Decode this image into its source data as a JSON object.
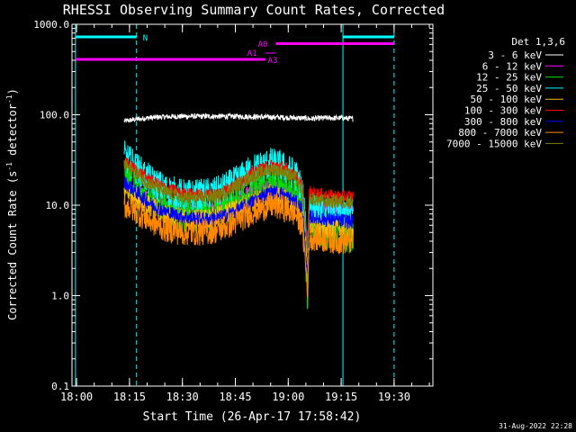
{
  "chart_data": {
    "type": "line",
    "title": "RHESSI Observing Summary Count Rates, Corrected",
    "xlabel": "Start Time (26-Apr-17 17:58:42)",
    "ylabel_main": "Corrected Count Rate (s",
    "ylabel_sup1": "-1",
    "ylabel_mid": " detector",
    "ylabel_sup2": "-1",
    "ylabel_end": ")",
    "y_scale": "log",
    "ylim": [
      0.1,
      1000
    ],
    "xlim_minutes": [
      -1.3,
      101
    ],
    "x_ticks": [
      {
        "label": "18:00",
        "minutes": 0
      },
      {
        "label": "18:15",
        "minutes": 15
      },
      {
        "label": "18:30",
        "minutes": 30
      },
      {
        "label": "18:45",
        "minutes": 45
      },
      {
        "label": "19:00",
        "minutes": 60
      },
      {
        "label": "19:15",
        "minutes": 75
      },
      {
        "label": "19:30",
        "minutes": 90
      }
    ],
    "y_ticks": [
      {
        "label": "1000.0",
        "value": 1000
      },
      {
        "label": "100.0",
        "value": 100
      },
      {
        "label": "10.0",
        "value": 10
      },
      {
        "label": "1.0",
        "value": 1
      },
      {
        "label": "0.1",
        "value": 0.1
      }
    ],
    "legend_header": "Det 1,3,6",
    "legend_placement": "right",
    "series": [
      {
        "name": "3 - 6 keV",
        "color": "#ffffff",
        "points": [
          [
            13.5,
            85
          ],
          [
            16,
            88
          ],
          [
            20,
            92
          ],
          [
            25,
            95
          ],
          [
            30,
            96
          ],
          [
            35,
            96
          ],
          [
            40,
            96
          ],
          [
            45,
            96
          ],
          [
            50,
            95
          ],
          [
            55,
            94
          ],
          [
            60,
            93
          ],
          [
            63,
            92
          ],
          [
            65.4,
            91
          ],
          [
            65.6,
            91
          ],
          [
            66,
            90
          ],
          [
            70,
            92
          ],
          [
            75,
            92
          ],
          [
            78.4,
            90
          ]
        ]
      },
      {
        "name": "6 - 12 keV",
        "color": "#ff00ff",
        "points": [
          [
            13.5,
            18
          ],
          [
            16,
            16
          ],
          [
            20,
            13
          ],
          [
            25,
            10.5
          ],
          [
            30,
            9.5
          ],
          [
            35,
            9.3
          ],
          [
            40,
            10
          ],
          [
            45,
            12
          ],
          [
            50,
            15
          ],
          [
            55,
            17
          ],
          [
            58,
            16
          ],
          [
            62,
            13
          ],
          [
            64,
            11
          ],
          [
            65.5,
            4
          ],
          [
            66,
            10
          ],
          [
            70,
            9.5
          ],
          [
            75,
            9
          ],
          [
            78.4,
            9
          ]
        ]
      },
      {
        "name": "12 - 25 keV",
        "color": "#00dd00",
        "points": [
          [
            13.5,
            22
          ],
          [
            16,
            17
          ],
          [
            20,
            12
          ],
          [
            25,
            9
          ],
          [
            30,
            8
          ],
          [
            35,
            8
          ],
          [
            40,
            8.5
          ],
          [
            45,
            11
          ],
          [
            50,
            15
          ],
          [
            55,
            19
          ],
          [
            58,
            18
          ],
          [
            62,
            14
          ],
          [
            64,
            10
          ],
          [
            65.5,
            1
          ],
          [
            66,
            6
          ],
          [
            70,
            5
          ],
          [
            75,
            5
          ],
          [
            78.4,
            4.5
          ]
        ]
      },
      {
        "name": "25 - 50 keV",
        "color": "#00ffff",
        "points": [
          [
            13.5,
            35
          ],
          [
            16,
            28
          ],
          [
            20,
            20
          ],
          [
            25,
            15
          ],
          [
            30,
            13
          ],
          [
            35,
            13
          ],
          [
            40,
            14
          ],
          [
            45,
            18
          ],
          [
            50,
            25
          ],
          [
            55,
            29
          ],
          [
            58,
            27
          ],
          [
            62,
            22
          ],
          [
            64,
            15
          ],
          [
            65.5,
            3
          ],
          [
            66,
            10
          ],
          [
            70,
            8
          ],
          [
            75,
            8
          ],
          [
            78.4,
            8
          ]
        ]
      },
      {
        "name": "50 - 100 keV",
        "color": "#ffbb00",
        "points": [
          [
            13.5,
            15
          ],
          [
            16,
            13
          ],
          [
            20,
            10
          ],
          [
            25,
            8
          ],
          [
            30,
            7
          ],
          [
            35,
            7
          ],
          [
            40,
            7.5
          ],
          [
            45,
            9
          ],
          [
            50,
            11
          ],
          [
            55,
            13
          ],
          [
            58,
            12
          ],
          [
            62,
            10
          ],
          [
            64,
            8
          ],
          [
            65.5,
            2
          ],
          [
            66,
            6
          ],
          [
            70,
            5.5
          ],
          [
            75,
            5.5
          ],
          [
            78.4,
            5
          ]
        ]
      },
      {
        "name": "100 - 300 keV",
        "color": "#ff0000",
        "points": [
          [
            13.5,
            30
          ],
          [
            16,
            26
          ],
          [
            20,
            20
          ],
          [
            25,
            15.5
          ],
          [
            30,
            13.5
          ],
          [
            35,
            13
          ],
          [
            40,
            13.5
          ],
          [
            45,
            17
          ],
          [
            50,
            23
          ],
          [
            55,
            27.5
          ],
          [
            58,
            27
          ],
          [
            62,
            22
          ],
          [
            64,
            16
          ],
          [
            65.5,
            3.5
          ],
          [
            66,
            14
          ],
          [
            70,
            13
          ],
          [
            75,
            12.5
          ],
          [
            78.4,
            12.5
          ]
        ]
      },
      {
        "name": "300 - 800 keV",
        "color": "#0000ff",
        "points": [
          [
            13.5,
            18
          ],
          [
            16,
            15
          ],
          [
            20,
            11
          ],
          [
            25,
            8.5
          ],
          [
            30,
            7.5
          ],
          [
            35,
            7
          ],
          [
            40,
            7.2
          ],
          [
            45,
            8.5
          ],
          [
            50,
            11
          ],
          [
            55,
            14
          ],
          [
            58,
            13.5
          ],
          [
            62,
            11
          ],
          [
            64,
            9
          ],
          [
            65.5,
            1.5
          ],
          [
            66,
            7.5
          ],
          [
            70,
            7
          ],
          [
            75,
            6.8
          ],
          [
            78.4,
            6.5
          ]
        ]
      },
      {
        "name": "800 - 7000 keV",
        "color": "#ff8800",
        "points": [
          [
            13.5,
            10
          ],
          [
            16,
            9
          ],
          [
            20,
            7
          ],
          [
            25,
            5.5
          ],
          [
            30,
            5
          ],
          [
            35,
            5
          ],
          [
            40,
            5.3
          ],
          [
            45,
            6.5
          ],
          [
            50,
            8.5
          ],
          [
            55,
            10
          ],
          [
            58,
            9.5
          ],
          [
            62,
            8
          ],
          [
            64,
            6
          ],
          [
            65.5,
            1.2
          ],
          [
            66,
            4.5
          ],
          [
            70,
            4.2
          ],
          [
            75,
            4
          ],
          [
            78.4,
            4
          ]
        ]
      },
      {
        "name": "7000 - 15000 keV",
        "color": "#808000",
        "points": [
          [
            13.5,
            28
          ],
          [
            16,
            24
          ],
          [
            20,
            18
          ],
          [
            25,
            14
          ],
          [
            30,
            12
          ],
          [
            35,
            12
          ],
          [
            40,
            12.5
          ],
          [
            45,
            16
          ],
          [
            50,
            21
          ],
          [
            55,
            25
          ],
          [
            58,
            24
          ],
          [
            62,
            20
          ],
          [
            64,
            14
          ],
          [
            65.5,
            3
          ],
          [
            66,
            12
          ],
          [
            70,
            11
          ],
          [
            75,
            11
          ],
          [
            78.4,
            11
          ]
        ]
      }
    ],
    "annotations": {
      "night_label": "N",
      "attenuator_labels": [
        "A0",
        "A1",
        "A3"
      ],
      "night_intervals_minutes": [
        [
          -0.3,
          17
        ],
        [
          75.5,
          90
        ]
      ],
      "attenuator_intervals_minutes": [
        [
          -0.3,
          53.5
        ],
        [
          56.5,
          90
        ]
      ],
      "night_color": "#00ffff",
      "attenuator_color": "#ff00ff"
    }
  },
  "timestamp": "31-Aug-2022 22:28"
}
